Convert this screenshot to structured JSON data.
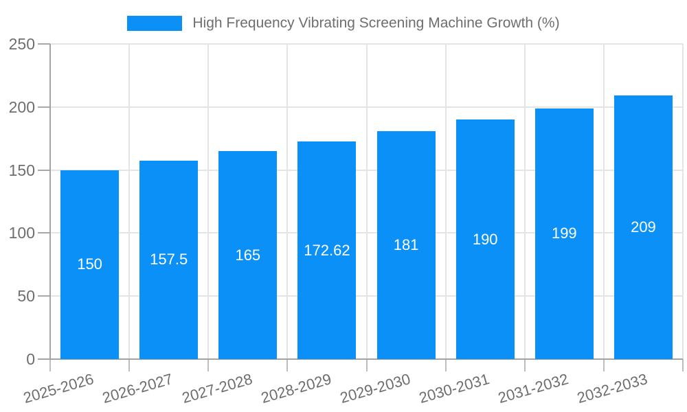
{
  "chart_data": {
    "type": "bar",
    "title": "",
    "legend": {
      "position": "top",
      "label": "High Frequency Vibrating Screening Machine Growth (%)"
    },
    "categories": [
      "2025-2026",
      "2026-2027",
      "2027-2028",
      "2028-2029",
      "2029-2030",
      "2030-2031",
      "2031-2032",
      "2032-2033"
    ],
    "series": [
      {
        "name": "High Frequency Vibrating Screening Machine Growth (%)",
        "values": [
          150,
          157.5,
          165,
          172.62,
          181,
          190,
          199,
          209
        ],
        "value_labels": [
          "150",
          "157.5",
          "165",
          "172.62",
          "181",
          "190",
          "199",
          "209"
        ]
      }
    ],
    "xlabel": "",
    "ylabel": "",
    "ylim": [
      0,
      250
    ],
    "yticks": [
      0,
      50,
      100,
      150,
      200,
      250
    ],
    "grid": true,
    "x_tick_label_rotation_deg": -16,
    "colors": {
      "bar": "#0b90f8",
      "value_label": "#ffffff",
      "axis_line": "#a3a3a3",
      "gridline": "#e4e4e4",
      "tick_label": "#6e6e6e",
      "legend_text": "#6e6e6e",
      "background": "#ffffff"
    }
  }
}
